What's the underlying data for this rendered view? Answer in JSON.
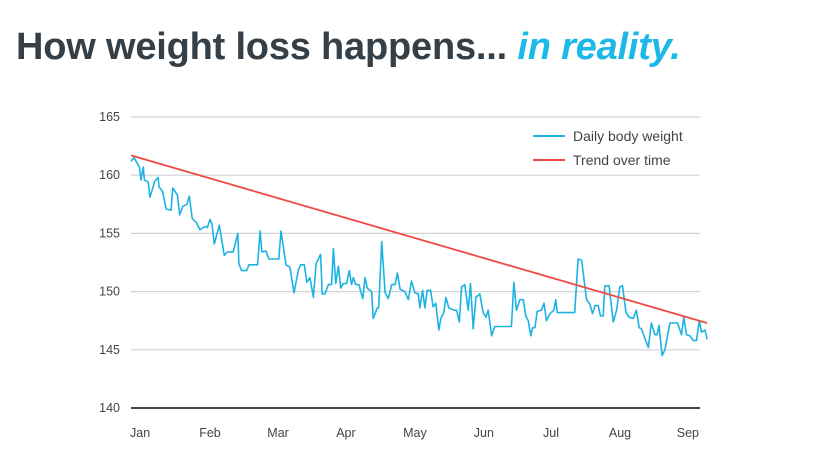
{
  "title": {
    "main": "How weight loss happens...",
    "accent": "in reality."
  },
  "colors": {
    "daily": "#1cb3e3",
    "trend": "#ef4b45",
    "grid": "#cfd3d6",
    "axis": "#3d4852",
    "title": "#343f48",
    "accent": "#1cb9e8"
  },
  "chart_data": {
    "type": "line",
    "title": "How weight loss happens... in reality.",
    "xlabel": "",
    "ylabel": "",
    "x_unit": "days since Jan 1",
    "xlim": [
      0,
      253
    ],
    "ylim": [
      140,
      165
    ],
    "yticks": [
      140,
      145,
      150,
      155,
      160,
      165
    ],
    "ytick_labels": [
      "140",
      "145",
      "150",
      "155",
      "160",
      "165"
    ],
    "xticks": [
      4,
      34.7,
      64.6,
      94.4,
      124.7,
      155,
      184.5,
      214.8,
      244.6
    ],
    "xtick_labels": [
      "Jan",
      "Feb",
      "Mar",
      "Apr",
      "May",
      "Jun",
      "Jul",
      "Aug",
      "Sep"
    ],
    "grid": true,
    "legend_position": "top-right",
    "series": [
      {
        "name": "Daily body weight",
        "x": [
          0,
          1.3,
          3.7,
          4.4,
          5.4,
          5.9,
          7.6,
          8.3,
          10.5,
          11.9,
          12.3,
          13.9,
          15.4,
          17.6,
          18.3,
          20.4,
          21.4,
          22.7,
          24.5,
          25.6,
          26.9,
          28.8,
          30.3,
          32.5,
          33.5,
          34.7,
          35.6,
          36.6,
          38.8,
          41,
          42.3,
          44.9,
          46.9,
          47.4,
          48.6,
          50.8,
          51.8,
          55.6,
          56.7,
          57.5,
          59.2,
          60.6,
          64.9,
          65.9,
          68.1,
          69.8,
          71.6,
          73.5,
          74.5,
          76.1,
          77.2,
          78.6,
          80.1,
          81.3,
          83.3,
          84,
          85.2,
          86.7,
          88.1,
          88.9,
          89.9,
          91.1,
          92.1,
          93.3,
          94.7,
          95.9,
          96.9,
          97.7,
          98.7,
          100.1,
          101.8,
          102.8,
          103.8,
          105.7,
          106.4,
          108.2,
          108.8,
          110.1,
          111.6,
          113,
          114.5,
          116,
          117,
          118.2,
          120.3,
          121.8,
          123.2,
          124.7,
          126.2,
          126.9,
          128.1,
          129.1,
          130.1,
          131.6,
          132.7,
          133.9,
          135.2,
          136.1,
          137.4,
          138.3,
          139.6,
          141.8,
          143,
          144.2,
          145.2,
          146.6,
          148.1,
          149.1,
          150.3,
          151.5,
          153.2,
          154.7,
          155.9,
          156.9,
          158.4,
          159.8,
          167.1,
          168.2,
          169.3,
          170.8,
          172.3,
          173.4,
          174.5,
          175.6,
          176.4,
          177.4,
          178.4,
          180.3,
          181.4,
          182.5,
          184,
          185.7,
          186.6,
          187.2,
          194.9,
          196.4,
          197.9,
          200.1,
          201.6,
          202.7,
          203.8,
          205.2,
          206.2,
          207.4,
          208.1,
          210,
          211.8,
          213.3,
          214.7,
          215.9,
          217.4,
          218.8,
          220.6,
          222,
          223.2,
          224.2,
          227.2,
          228.6,
          230.1,
          231.1,
          231.9,
          233.3,
          234.5,
          236.7,
          240.1,
          241.8,
          242.8,
          244,
          245.5,
          247,
          248.4,
          249.6,
          250.6,
          252.1,
          253.1
        ],
        "y": [
          161.2,
          161.5,
          160.7,
          159.6,
          160.7,
          159.6,
          159.4,
          158.1,
          159.5,
          159.8,
          159,
          158.6,
          157.1,
          157,
          158.9,
          158.3,
          156.6,
          157.3,
          157.5,
          158.2,
          156.3,
          155.9,
          155.3,
          155.6,
          155.5,
          156.2,
          155.8,
          154.1,
          155.7,
          153.1,
          153.4,
          153.4,
          155,
          152.4,
          151.8,
          151.8,
          152.3,
          152.3,
          155.2,
          153.4,
          153.5,
          152.8,
          152.8,
          155.2,
          152.3,
          152.1,
          149.9,
          151.8,
          152.3,
          152.3,
          150.8,
          151.2,
          149.5,
          152.4,
          153.2,
          149.8,
          149.8,
          150.6,
          150.6,
          153.7,
          150.7,
          152.2,
          150.3,
          150.7,
          150.7,
          151.8,
          150.6,
          151.2,
          150.6,
          150.6,
          149.4,
          151.2,
          150.3,
          150,
          147.7,
          148.6,
          148.6,
          154.3,
          149.9,
          149.4,
          150.6,
          150.6,
          151.6,
          150.2,
          150,
          149.3,
          150.9,
          149.9,
          149.8,
          148.6,
          150.1,
          148.6,
          150.1,
          150.1,
          148.7,
          149,
          146.7,
          147.7,
          148.2,
          149.5,
          148.6,
          148.4,
          148.4,
          147.4,
          150.4,
          150.6,
          148.4,
          150.7,
          146.8,
          149.5,
          149.8,
          148.2,
          147.8,
          148.4,
          146.2,
          147,
          147,
          150.8,
          148.4,
          149.3,
          149.3,
          147.9,
          147.5,
          146.2,
          146.9,
          146.9,
          148.3,
          148.4,
          149,
          147.5,
          148.1,
          148.4,
          149.3,
          148.2,
          148.2,
          152.8,
          152.7,
          149.3,
          148.9,
          148.1,
          148.8,
          148.8,
          147.9,
          147.9,
          150.5,
          150.5,
          147.4,
          148.4,
          150.4,
          150.5,
          148.2,
          147.8,
          147.7,
          148.4,
          146.9,
          146.8,
          145.2,
          147.3,
          146.3,
          146.3,
          147.1,
          144.5,
          145,
          147.3,
          147.3,
          146.3,
          147.8,
          146.3,
          146.2,
          145.8,
          145.8,
          147.5,
          146.5,
          146.7,
          145.9
        ]
      },
      {
        "name": "Trend over time",
        "x": [
          0,
          253
        ],
        "y": [
          161.7,
          147.3
        ]
      }
    ]
  }
}
